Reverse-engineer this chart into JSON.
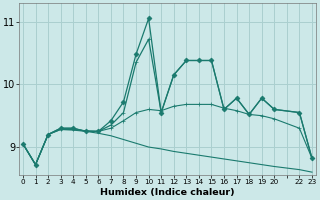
{
  "xlabel": "Humidex (Indice chaleur)",
  "bg_color": "#cce8e8",
  "grid_color": "#aacfcf",
  "line_color": "#1a7a6e",
  "xlim": [
    -0.3,
    23.3
  ],
  "ylim": [
    8.55,
    11.3
  ],
  "yticks": [
    9,
    10,
    11
  ],
  "ytick_labels": [
    "9",
    "10",
    "11"
  ],
  "xtick_labels": [
    "0",
    "1",
    "2",
    "3",
    "4",
    "5",
    "6",
    "7",
    "8",
    "9",
    "10",
    "11",
    "12",
    "13",
    "14",
    "15",
    "16",
    "17",
    "18",
    "19",
    "20",
    "",
    "22",
    "23"
  ],
  "series": [
    {
      "x": [
        0,
        1,
        2,
        3,
        4,
        5,
        6,
        7,
        8,
        9,
        10,
        11,
        12,
        13,
        14,
        15,
        16,
        17,
        18,
        19,
        20,
        22,
        23
      ],
      "y": [
        9.05,
        8.72,
        9.2,
        9.3,
        9.3,
        9.25,
        9.25,
        9.42,
        9.72,
        10.48,
        11.05,
        9.55,
        10.15,
        10.38,
        10.38,
        10.38,
        9.6,
        9.78,
        9.52,
        9.78,
        9.6,
        9.55,
        8.82
      ],
      "marker": "D",
      "markersize": 2.5,
      "linewidth": 0.9,
      "linestyle": "solid"
    },
    {
      "x": [
        0,
        1,
        2,
        3,
        4,
        5,
        6,
        7,
        8,
        9,
        10,
        11,
        12,
        13,
        14,
        15,
        16,
        17,
        18,
        19,
        20,
        22,
        23
      ],
      "y": [
        9.05,
        8.72,
        9.2,
        9.3,
        9.3,
        9.25,
        9.25,
        9.35,
        9.55,
        10.35,
        10.72,
        9.55,
        10.15,
        10.38,
        10.38,
        10.38,
        9.6,
        9.78,
        9.52,
        9.78,
        9.6,
        9.55,
        8.82
      ],
      "marker": "+",
      "markersize": 3.0,
      "linewidth": 0.9,
      "linestyle": "solid"
    },
    {
      "x": [
        0,
        1,
        2,
        3,
        4,
        5,
        6,
        7,
        8,
        9,
        10,
        11,
        12,
        13,
        14,
        15,
        16,
        17,
        18,
        19,
        20,
        22,
        23
      ],
      "y": [
        9.05,
        8.72,
        9.2,
        9.28,
        9.28,
        9.26,
        9.25,
        9.3,
        9.42,
        9.55,
        9.6,
        9.58,
        9.65,
        9.68,
        9.68,
        9.68,
        9.62,
        9.58,
        9.52,
        9.5,
        9.45,
        9.3,
        8.82
      ],
      "marker": "+",
      "markersize": 2.5,
      "linewidth": 0.8,
      "linestyle": "solid"
    },
    {
      "x": [
        0,
        1,
        2,
        3,
        4,
        5,
        6,
        7,
        8,
        9,
        10,
        11,
        12,
        13,
        14,
        15,
        16,
        17,
        18,
        19,
        20,
        22,
        23
      ],
      "y": [
        9.05,
        8.72,
        9.2,
        9.28,
        9.27,
        9.25,
        9.22,
        9.18,
        9.12,
        9.06,
        9.0,
        8.97,
        8.93,
        8.9,
        8.87,
        8.84,
        8.81,
        8.78,
        8.75,
        8.72,
        8.69,
        8.64,
        8.6
      ],
      "marker": null,
      "markersize": 0,
      "linewidth": 0.8,
      "linestyle": "solid"
    }
  ]
}
